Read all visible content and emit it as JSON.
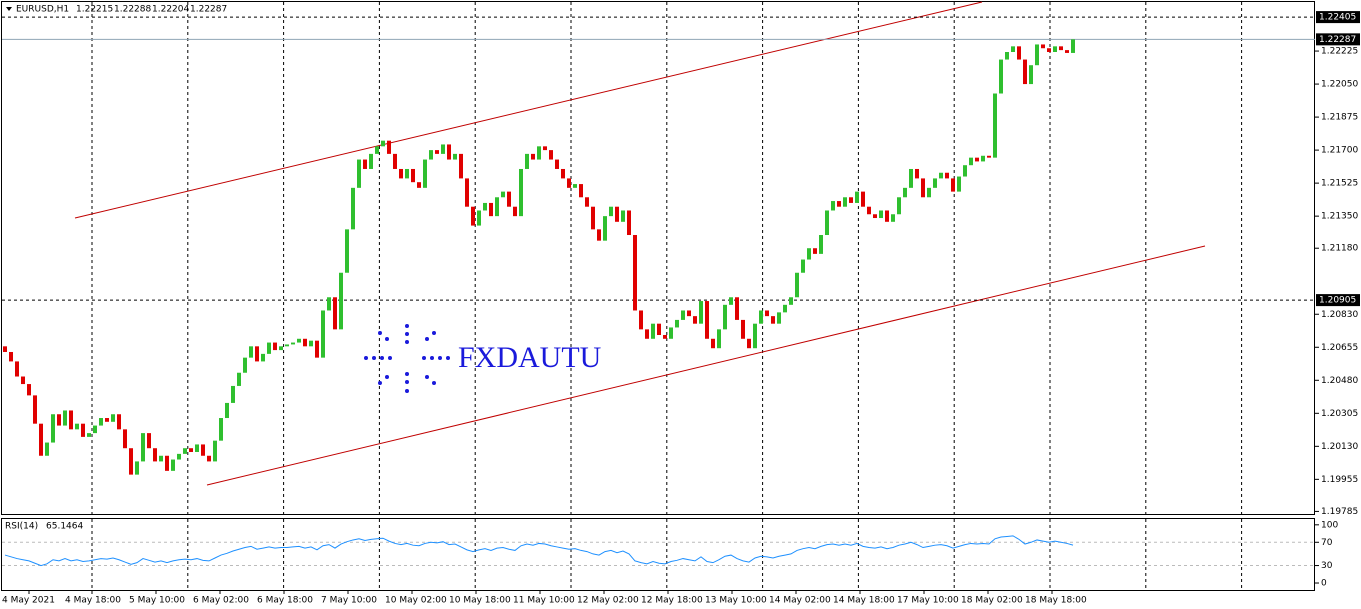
{
  "chart_data": {
    "type": "candlestick",
    "symbol": "EURUSD,H1",
    "ohlc": [
      1.22215,
      1.22288,
      1.22204,
      1.22287
    ],
    "watermark": "FXDAUTU",
    "up_color": "#2fbf2f",
    "down_color": "#e00000",
    "first_open": 1.2066,
    "close": [
      1.2063,
      1.2058,
      1.205,
      1.2046,
      1.204,
      1.2025,
      1.2008,
      1.2015,
      1.203,
      1.2024,
      1.2032,
      1.2022,
      1.2025,
      1.2018,
      1.202,
      1.2024,
      1.2028,
      1.2026,
      1.203,
      1.2022,
      1.2012,
      1.1998,
      1.2005,
      1.202,
      1.2012,
      1.2005,
      1.2008,
      1.2,
      1.2006,
      1.2009,
      1.2012,
      1.201,
      1.2014,
      1.2008,
      1.2005,
      1.2016,
      1.2028,
      1.2036,
      1.2045,
      1.2052,
      1.206,
      1.2066,
      1.2058,
      1.2062,
      1.2068,
      1.2064,
      1.2066,
      1.2067,
      1.2068,
      1.207,
      1.2066,
      1.2069,
      1.206,
      1.2085,
      1.2092,
      1.2075,
      1.2105,
      1.2128,
      1.215,
      1.2165,
      1.216,
      1.2168,
      1.2172,
      1.2175,
      1.2168,
      1.216,
      1.2155,
      1.216,
      1.2153,
      1.215,
      1.2165,
      1.217,
      1.2168,
      1.2173,
      1.2165,
      1.2168,
      1.2155,
      1.214,
      1.213,
      1.2138,
      1.2142,
      1.2135,
      1.2145,
      1.2148,
      1.214,
      1.2135,
      1.216,
      1.2168,
      1.2165,
      1.2172,
      1.217,
      1.2165,
      1.216,
      1.2155,
      1.215,
      1.2152,
      1.2145,
      1.214,
      1.2128,
      1.2122,
      1.2135,
      1.214,
      1.2132,
      1.2138,
      1.2125,
      1.2085,
      1.2075,
      1.207,
      1.2078,
      1.2072,
      1.207,
      1.2076,
      1.208,
      1.2085,
      1.2082,
      1.2078,
      1.209,
      1.207,
      1.2065,
      1.2075,
      1.2088,
      1.2092,
      1.208,
      1.207,
      1.2065,
      1.2078,
      1.2085,
      1.2082,
      1.2078,
      1.2084,
      1.2088,
      1.2092,
      1.2105,
      1.2112,
      1.2118,
      1.2115,
      1.2125,
      1.2138,
      1.2143,
      1.214,
      1.2145,
      1.2142,
      1.2148,
      1.214,
      1.2136,
      1.2134,
      1.2138,
      1.2132,
      1.2136,
      1.2145,
      1.215,
      1.216,
      1.2155,
      1.2145,
      1.215,
      1.2155,
      1.2158,
      1.2155,
      1.2148,
      1.2156,
      1.2162,
      1.2166,
      1.2164,
      1.2167,
      1.2166,
      1.22,
      1.2218,
      1.2222,
      1.2225,
      1.2218,
      1.2205,
      1.2215,
      1.2226,
      1.2224,
      1.2222,
      1.2225,
      1.2223,
      1.22215,
      1.22287
    ],
    "ylim": [
      1.19766,
      1.22485
    ],
    "yticks": [
      1.22225,
      {
        "value": 1.2205,
        "label": "1.22050"
      },
      1.21875,
      {
        "value": 1.217,
        "label": "1.21700"
      },
      1.21525,
      {
        "value": 1.2135,
        "label": "1.21350"
      },
      {
        "value": 1.2118,
        "label": "1.21180"
      },
      {
        "value": 1.2083,
        "label": "1.20830"
      },
      1.20655,
      {
        "value": 1.2048,
        "label": "1.20480"
      },
      1.20305,
      {
        "value": 1.2013,
        "label": "1.20130"
      },
      1.19955,
      1.19785
    ],
    "hlines": [
      1.22405,
      1.20905
    ],
    "current_price": 1.22287,
    "rsi_label": "RSI(14)",
    "rsi_color": "#1e90ff",
    "rsi": [
      48,
      45,
      42,
      40,
      38,
      34,
      30,
      33,
      40,
      38,
      42,
      38,
      40,
      37,
      38,
      40,
      42,
      41,
      43,
      40,
      36,
      32,
      35,
      42,
      39,
      36,
      38,
      35,
      38,
      40,
      41,
      40,
      42,
      39,
      38,
      43,
      48,
      51,
      55,
      58,
      61,
      63,
      58,
      60,
      62,
      60,
      61,
      61,
      62,
      63,
      60,
      62,
      57,
      64,
      66,
      60,
      67,
      71,
      74,
      76,
      73,
      75,
      76,
      77,
      72,
      68,
      66,
      68,
      65,
      64,
      68,
      70,
      69,
      71,
      66,
      67,
      62,
      57,
      54,
      57,
      59,
      56,
      60,
      61,
      58,
      56,
      64,
      67,
      65,
      68,
      67,
      64,
      62,
      60,
      58,
      59,
      56,
      54,
      50,
      48,
      54,
      56,
      52,
      55,
      50,
      38,
      35,
      33,
      37,
      34,
      33,
      37,
      39,
      42,
      40,
      38,
      45,
      37,
      35,
      40,
      46,
      48,
      42,
      38,
      36,
      43,
      46,
      45,
      43,
      46,
      48,
      50,
      56,
      59,
      61,
      59,
      63,
      66,
      67,
      65,
      67,
      65,
      68,
      63,
      61,
      60,
      62,
      59,
      61,
      65,
      67,
      70,
      66,
      61,
      63,
      65,
      66,
      64,
      60,
      63,
      66,
      68,
      67,
      68,
      67,
      76,
      79,
      80,
      81,
      75,
      67,
      70,
      74,
      72,
      70,
      72,
      70,
      68,
      65.1464
    ],
    "rsi_ylim": [
      -12,
      110
    ],
    "rsi_yticks": [
      100,
      70,
      30,
      0
    ],
    "rsi_levels": [
      70,
      30
    ],
    "x_labels": [
      "4 May 2021",
      "4 May 18:00",
      "5 May 10:00",
      "6 May 02:00",
      "6 May 18:00",
      "7 May 10:00",
      "10 May 02:00",
      "10 May 18:00",
      "11 May 10:00",
      "12 May 02:00",
      "12 May 18:00",
      "13 May 10:00",
      "14 May 02:00",
      "14 May 18:00",
      "17 May 10:00",
      "18 May 02:00",
      "18 May 18:00"
    ]
  }
}
